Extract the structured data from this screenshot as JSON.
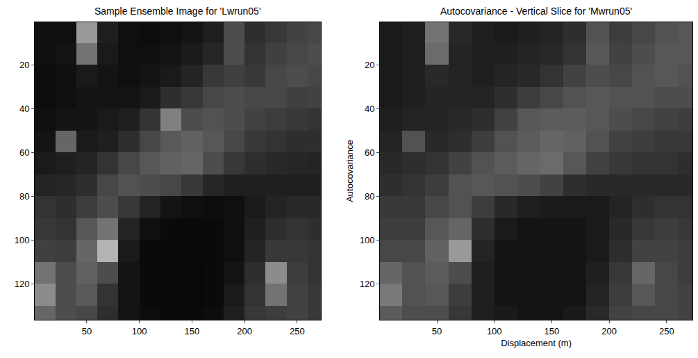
{
  "chart_data": [
    {
      "type": "heatmap",
      "title": "Sample Ensemble Image for 'Lwrun05'",
      "x": [
        10,
        30,
        50,
        70,
        90,
        110,
        130,
        150,
        170,
        190,
        210,
        230,
        250,
        270
      ],
      "y": [
        5,
        15,
        25,
        35,
        45,
        55,
        65,
        75,
        85,
        95,
        105,
        115,
        125,
        135
      ],
      "z": [
        [
          6,
          6,
          60,
          12,
          6,
          5,
          6,
          8,
          12,
          30,
          18,
          22,
          26,
          28
        ],
        [
          6,
          8,
          45,
          10,
          6,
          6,
          8,
          10,
          15,
          30,
          20,
          25,
          28,
          30
        ],
        [
          5,
          6,
          10,
          8,
          6,
          8,
          10,
          14,
          22,
          25,
          22,
          28,
          30,
          28
        ],
        [
          5,
          6,
          8,
          8,
          8,
          10,
          18,
          22,
          28,
          30,
          28,
          28,
          25,
          26
        ],
        [
          6,
          8,
          8,
          10,
          12,
          20,
          50,
          30,
          32,
          30,
          26,
          24,
          22,
          20
        ],
        [
          8,
          40,
          10,
          12,
          18,
          28,
          35,
          38,
          34,
          28,
          22,
          20,
          18,
          18
        ],
        [
          10,
          12,
          14,
          20,
          28,
          34,
          38,
          40,
          30,
          22,
          18,
          16,
          15,
          14
        ],
        [
          14,
          15,
          18,
          28,
          32,
          30,
          28,
          22,
          15,
          12,
          12,
          12,
          12,
          12
        ],
        [
          20,
          18,
          24,
          30,
          22,
          14,
          8,
          6,
          5,
          6,
          10,
          14,
          16,
          16
        ],
        [
          22,
          20,
          34,
          45,
          14,
          6,
          4,
          4,
          4,
          6,
          12,
          18,
          20,
          18
        ],
        [
          25,
          24,
          40,
          70,
          10,
          4,
          4,
          4,
          4,
          6,
          14,
          22,
          22,
          20
        ],
        [
          45,
          30,
          38,
          30,
          8,
          4,
          3,
          3,
          4,
          8,
          18,
          55,
          24,
          20
        ],
        [
          55,
          30,
          35,
          20,
          8,
          4,
          3,
          3,
          4,
          10,
          20,
          45,
          26,
          22
        ],
        [
          40,
          30,
          28,
          18,
          8,
          5,
          4,
          4,
          5,
          12,
          22,
          24,
          26,
          22
        ]
      ],
      "zlim": [
        0,
        100
      ],
      "xlim": [
        0.5,
        272.5
      ],
      "ylim": [
        136.5,
        0.5
      ],
      "xticks": [
        50,
        100,
        150,
        200,
        250
      ],
      "yticks": [
        20,
        40,
        60,
        80,
        100,
        120
      ],
      "grid": false
    },
    {
      "type": "heatmap",
      "title": "Autocovariance - Vertical Slice for 'Mwrun05'",
      "x_label": "Displacement (m)",
      "y_label": "Autocovariance",
      "x": [
        10,
        30,
        50,
        70,
        90,
        110,
        130,
        150,
        170,
        190,
        210,
        230,
        250,
        270
      ],
      "y": [
        5,
        15,
        25,
        35,
        45,
        55,
        65,
        75,
        85,
        95,
        105,
        115,
        125,
        135
      ],
      "z": [
        [
          10,
          12,
          45,
          16,
          12,
          10,
          12,
          14,
          18,
          32,
          24,
          28,
          32,
          34
        ],
        [
          10,
          12,
          42,
          14,
          12,
          12,
          14,
          16,
          20,
          34,
          26,
          30,
          34,
          34
        ],
        [
          10,
          12,
          16,
          14,
          12,
          14,
          16,
          20,
          26,
          30,
          28,
          32,
          34,
          32
        ],
        [
          10,
          12,
          14,
          14,
          14,
          18,
          24,
          28,
          32,
          34,
          32,
          32,
          30,
          30
        ],
        [
          12,
          14,
          14,
          16,
          18,
          26,
          34,
          36,
          36,
          34,
          30,
          28,
          26,
          24
        ],
        [
          14,
          32,
          16,
          18,
          24,
          32,
          36,
          40,
          38,
          32,
          26,
          24,
          22,
          22
        ],
        [
          16,
          18,
          20,
          26,
          32,
          36,
          40,
          42,
          34,
          26,
          22,
          20,
          20,
          18
        ],
        [
          18,
          20,
          24,
          32,
          34,
          32,
          30,
          26,
          18,
          16,
          16,
          16,
          16,
          16
        ],
        [
          22,
          22,
          28,
          32,
          24,
          16,
          12,
          10,
          10,
          10,
          14,
          18,
          20,
          20
        ],
        [
          24,
          24,
          34,
          40,
          18,
          10,
          8,
          8,
          8,
          10,
          16,
          22,
          24,
          22
        ],
        [
          28,
          28,
          38,
          60,
          14,
          8,
          8,
          8,
          8,
          10,
          18,
          26,
          26,
          24
        ],
        [
          40,
          32,
          36,
          30,
          12,
          8,
          8,
          8,
          8,
          12,
          22,
          40,
          28,
          24
        ],
        [
          48,
          32,
          34,
          24,
          12,
          8,
          8,
          8,
          8,
          14,
          24,
          34,
          28,
          26
        ],
        [
          36,
          30,
          30,
          22,
          12,
          10,
          8,
          8,
          10,
          16,
          26,
          28,
          28,
          26
        ]
      ],
      "zlim": [
        0,
        100
      ],
      "xlim": [
        0.5,
        272.5
      ],
      "ylim": [
        136.5,
        0.5
      ],
      "xticks": [
        50,
        100,
        150,
        200,
        250
      ],
      "yticks": [
        20,
        40,
        60,
        80,
        100,
        120
      ],
      "grid": false
    }
  ]
}
